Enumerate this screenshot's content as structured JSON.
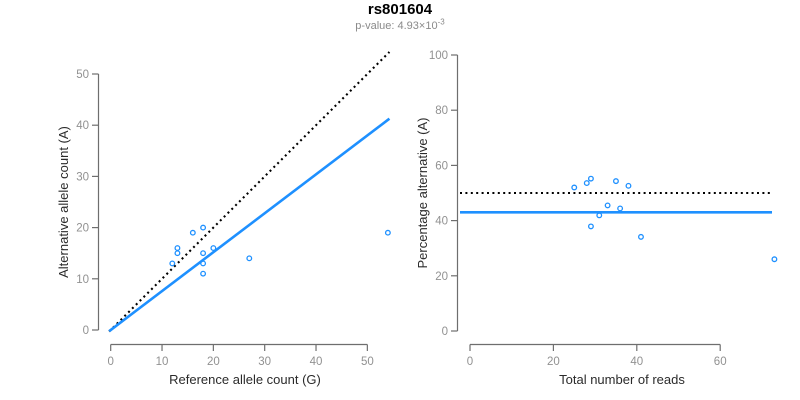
{
  "header": {
    "title": "rs801604",
    "subtitle_prefix": "p-value: 4.93×10",
    "subtitle_exponent": "-3"
  },
  "colors": {
    "accent_blue": "#1E90FF",
    "identity_black": "#000000",
    "axis_line": "#6e6e6e",
    "tick_label": "#919191",
    "axis_title": "#2b2b2b",
    "title": "#000000",
    "subtitle": "#8a8a8a"
  },
  "chart_data": [
    {
      "type": "scatter",
      "panel": "allele-counts",
      "xlabel": "Reference allele count (G)",
      "ylabel": "Alternative allele count (A)",
      "xticks": [
        0,
        10,
        20,
        30,
        40,
        50
      ],
      "yticks": [
        0,
        10,
        20,
        30,
        40,
        50
      ],
      "xlim": [
        0,
        54
      ],
      "ylim": [
        0,
        54
      ],
      "grid": false,
      "points": [
        [
          12,
          13
        ],
        [
          13,
          15
        ],
        [
          13,
          16
        ],
        [
          16,
          19
        ],
        [
          18,
          11
        ],
        [
          18,
          13
        ],
        [
          18,
          15
        ],
        [
          18,
          20
        ],
        [
          20,
          16
        ],
        [
          27,
          14
        ],
        [
          54,
          19
        ]
      ],
      "lines": [
        {
          "name": "identity",
          "style": "dotted",
          "color": "#000000",
          "slope": 1,
          "intercept": 0
        },
        {
          "name": "fit",
          "style": "solid",
          "color": "#1E90FF",
          "slope": 0.76,
          "intercept": 0
        }
      ]
    },
    {
      "type": "scatter",
      "panel": "percentage-vs-reads",
      "xlabel": "Total number of reads",
      "ylabel": "Percentage alternative (A)",
      "xticks": [
        0,
        20,
        40,
        60
      ],
      "yticks": [
        0,
        20,
        40,
        60,
        80,
        100
      ],
      "xlim": [
        0,
        73
      ],
      "ylim": [
        0,
        100
      ],
      "grid": false,
      "points": [
        [
          25,
          52
        ],
        [
          28,
          53.6
        ],
        [
          29,
          55.2
        ],
        [
          29,
          37.9
        ],
        [
          31,
          41.9
        ],
        [
          33,
          45.5
        ],
        [
          35,
          54.3
        ],
        [
          36,
          44.4
        ],
        [
          38,
          52.6
        ],
        [
          41,
          34.1
        ],
        [
          73,
          26
        ]
      ],
      "lines": [
        {
          "name": "expected",
          "style": "dotted",
          "color": "#000000",
          "y": 50
        },
        {
          "name": "observed",
          "style": "solid",
          "color": "#1E90FF",
          "y": 43
        }
      ]
    }
  ]
}
